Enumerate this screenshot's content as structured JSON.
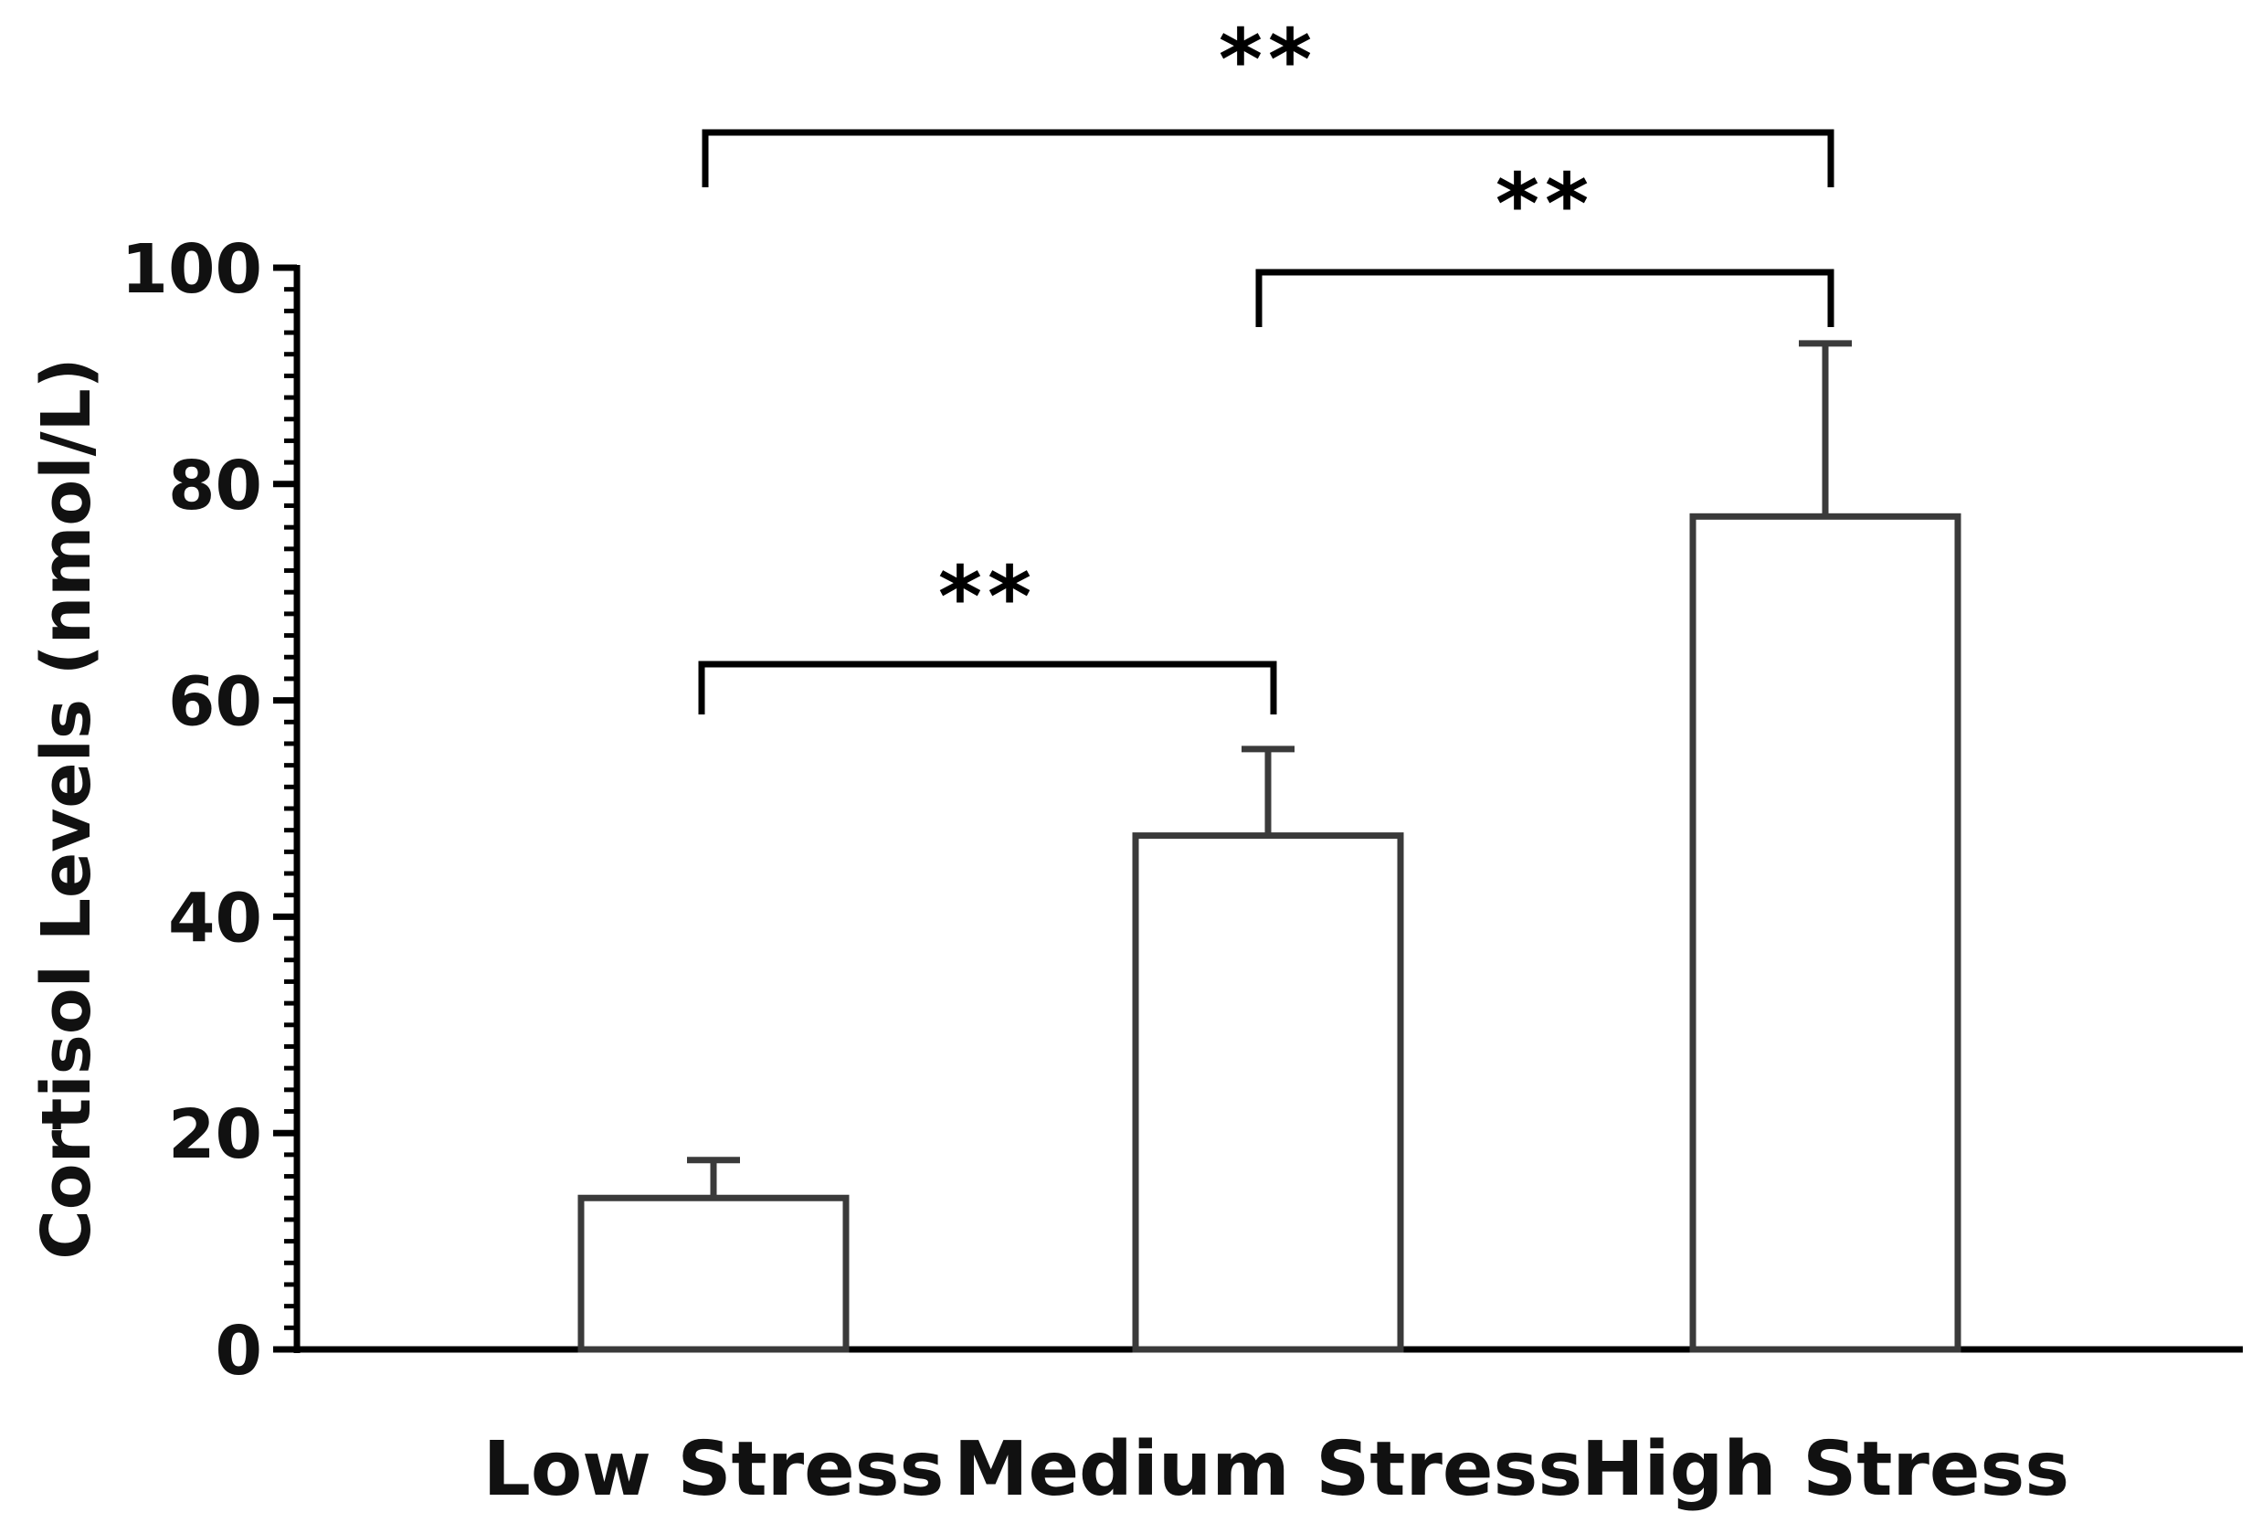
{
  "chart_data": {
    "type": "bar",
    "categories": [
      "Low Stress",
      "Medium Stress",
      "High Stress"
    ],
    "values": [
      14,
      47.5,
      77
    ],
    "error_bars": [
      3.5,
      8,
      16
    ],
    "ylabel": "Cortisol Levels (nmol/L)",
    "xlabel": "",
    "ylim": [
      0,
      100
    ],
    "yticks": [
      0,
      20,
      40,
      60,
      80,
      100
    ],
    "y_minor_tick_step": 2,
    "grid": false,
    "legend": "none",
    "bar_fill": "#ffffff",
    "bar_stroke": "#3a3a3a",
    "significance": [
      {
        "from": 0,
        "to": 1,
        "label": "**"
      },
      {
        "from": 1,
        "to": 2,
        "label": "**"
      },
      {
        "from": 0,
        "to": 2,
        "label": "**"
      }
    ]
  }
}
